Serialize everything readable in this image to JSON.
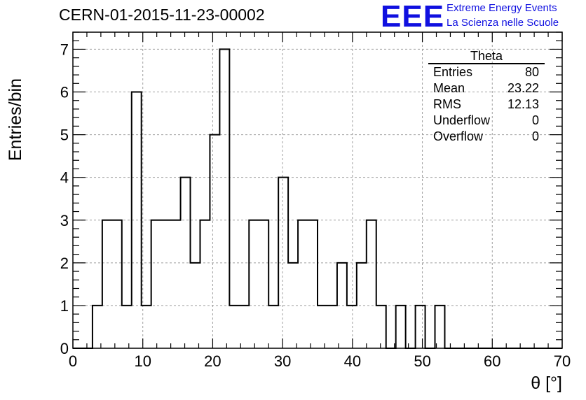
{
  "title": "CERN-01-2015-11-23-00002",
  "logo": {
    "mark": "EEE",
    "line1": "Extreme Energy Events",
    "line2": "La Scienza nelle Scuole",
    "color": "#1010e0"
  },
  "stats": {
    "title": "Theta",
    "rows": [
      {
        "label": "Entries",
        "value": "80"
      },
      {
        "label": "Mean",
        "value": "23.22"
      },
      {
        "label": "RMS",
        "value": "12.13"
      },
      {
        "label": "Underflow",
        "value": "0"
      },
      {
        "label": "Overflow",
        "value": "0"
      }
    ]
  },
  "chart_data": {
    "type": "bar",
    "style": "step-histogram",
    "xlabel": "θ [°]",
    "ylabel": "Entries/bin",
    "xlim": [
      0,
      70
    ],
    "ylim": [
      0,
      7.4
    ],
    "bin_width": 1.4,
    "grid": true,
    "x_ticks": [
      0,
      10,
      20,
      30,
      40,
      50,
      60,
      70
    ],
    "y_ticks": [
      0,
      1,
      2,
      3,
      4,
      5,
      6,
      7
    ],
    "bin_edges_start": 0,
    "values": [
      0,
      0,
      1,
      3,
      3,
      1,
      6,
      1,
      3,
      3,
      3,
      4,
      2,
      3,
      5,
      7,
      1,
      1,
      3,
      3,
      1,
      4,
      2,
      3,
      3,
      1,
      1,
      2,
      1,
      2,
      3,
      1,
      0,
      1,
      0,
      1,
      0,
      1,
      0,
      0,
      0,
      0,
      0,
      0,
      0,
      0,
      0,
      0,
      0,
      0
    ]
  }
}
